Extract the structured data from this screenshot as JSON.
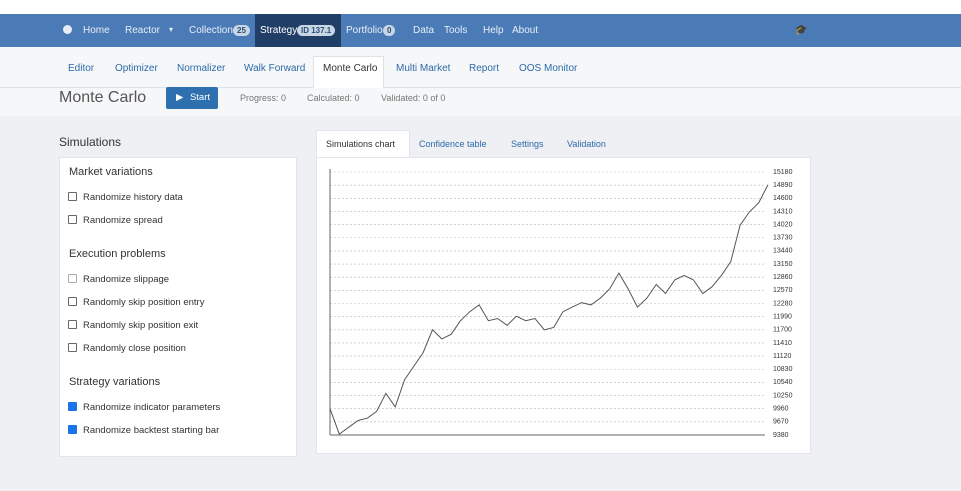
{
  "navbar": {
    "items": [
      {
        "label": "Home"
      },
      {
        "label": "Reactor"
      },
      {
        "label": "Collection",
        "badge": "25"
      },
      {
        "label": "Strategy",
        "badge": "ID 137.1"
      },
      {
        "label": "Portfolio",
        "badge": "0"
      },
      {
        "label": "Data"
      },
      {
        "label": "Tools"
      },
      {
        "label": "Help"
      },
      {
        "label": "About"
      }
    ]
  },
  "subnav": {
    "items": [
      "Editor",
      "Optimizer",
      "Normalizer",
      "Walk Forward",
      "Monte Carlo",
      "Multi Market",
      "Report",
      "OOS Monitor"
    ]
  },
  "header": {
    "title": "Monte Carlo",
    "button": "Start",
    "progress": "Progress: 0",
    "calculated": "Calculated: 0",
    "validated": "Validated: 0 of 0"
  },
  "simulations": {
    "title": "Simulations",
    "groups": [
      {
        "title": "Market variations",
        "options": [
          {
            "label": "Randomize history data",
            "checked": false
          },
          {
            "label": "Randomize spread",
            "checked": false
          }
        ]
      },
      {
        "title": "Execution problems",
        "options": [
          {
            "label": "Randomize slippage",
            "checked": false
          },
          {
            "label": "Randomly skip position entry",
            "checked": false
          },
          {
            "label": "Randomly skip position exit",
            "checked": false
          },
          {
            "label": "Randomly close position",
            "checked": false
          }
        ]
      },
      {
        "title": "Strategy variations",
        "options": [
          {
            "label": "Randomize indicator parameters",
            "checked": true
          },
          {
            "label": "Randomize backtest starting bar",
            "checked": true
          }
        ]
      }
    ]
  },
  "tabs": {
    "items": [
      "Simulations chart",
      "Confidence table",
      "Settings",
      "Validation"
    ]
  },
  "chart_data": {
    "type": "line",
    "color": "#555555",
    "grid": true,
    "ylim": [
      9380,
      15180
    ],
    "yticks": [
      15180,
      14890,
      14600,
      14310,
      14020,
      13730,
      13440,
      13150,
      12860,
      12570,
      12280,
      11990,
      11700,
      11410,
      11120,
      10830,
      10540,
      10250,
      9960,
      9670,
      9380
    ],
    "values": [
      9960,
      9400,
      9550,
      9700,
      9750,
      9900,
      10300,
      10000,
      10600,
      10900,
      11200,
      11700,
      11500,
      11600,
      11900,
      12100,
      12250,
      11900,
      11950,
      11800,
      12000,
      11900,
      11950,
      11700,
      11750,
      12100,
      12200,
      12300,
      12250,
      12400,
      12600,
      12950,
      12600,
      12200,
      12400,
      12700,
      12500,
      12800,
      12900,
      12800,
      12500,
      12650,
      12900,
      13200,
      14000,
      14300,
      14500,
      14900
    ]
  }
}
